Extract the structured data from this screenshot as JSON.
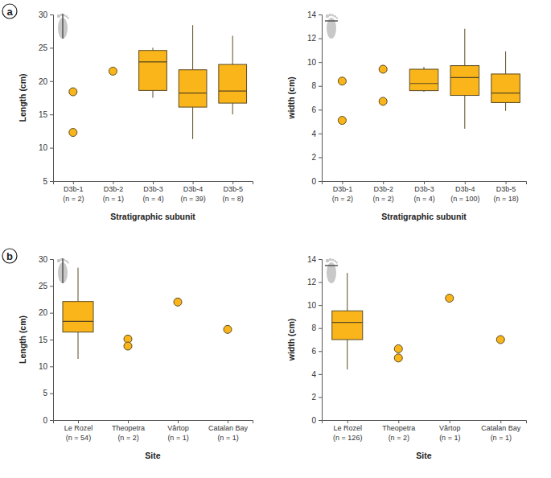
{
  "chart_data": [
    {
      "type": "box",
      "panel_label": "a",
      "x_label": "Stratigraphic subunit",
      "y_label": "Length (cm)",
      "color": "#F9B51A",
      "categories": [
        "D3b-1\n(n = 2)",
        "D3b-2\n(n = 1)",
        "D3b-3\n(n = 4)",
        "D3b-4\n(n = 39)",
        "D3b-5\n(n = 8)"
      ],
      "boxes": [
        null,
        null,
        {
          "min": 17.5,
          "q1": 18.6,
          "median": 22.9,
          "q3": 24.6,
          "max": 25.0
        },
        {
          "min": 11.3,
          "q1": 16.1,
          "median": 18.2,
          "q3": 21.7,
          "max": 28.4
        },
        {
          "min": 15.0,
          "q1": 16.7,
          "median": 18.5,
          "q3": 22.5,
          "max": 26.8
        }
      ],
      "points": [
        [
          18.4,
          12.3
        ],
        [
          21.5
        ],
        [],
        [],
        []
      ],
      "ylim": [
        5,
        30
      ],
      "yticks": [
        5,
        10,
        15,
        20,
        25,
        30
      ]
    },
    {
      "type": "box",
      "x_label": "Stratigraphic subunit",
      "y_label": "width (cm)",
      "color": "#F9B51A",
      "categories": [
        "D3b-1\n(n = 2)",
        "D3b-2\n(n = 2)",
        "D3b-3\n(n = 4)",
        "D3b-4\n(n = 100)",
        "D3b-5\n(n = 18)"
      ],
      "boxes": [
        null,
        null,
        {
          "min": 7.5,
          "q1": 7.6,
          "median": 8.2,
          "q3": 9.4,
          "max": 9.6
        },
        {
          "min": 4.4,
          "q1": 7.2,
          "median": 8.7,
          "q3": 9.7,
          "max": 12.8
        },
        {
          "min": 5.9,
          "q1": 6.6,
          "median": 7.4,
          "q3": 9.0,
          "max": 10.9
        }
      ],
      "points": [
        [
          8.4,
          5.1
        ],
        [
          9.4,
          6.7
        ],
        [],
        [],
        []
      ],
      "ylim": [
        0,
        14
      ],
      "yticks": [
        0,
        2,
        4,
        6,
        8,
        10,
        12,
        14
      ]
    },
    {
      "type": "box",
      "panel_label": "b",
      "x_label": "Site",
      "y_label": "Length (cm)",
      "color": "#F9B51A",
      "categories": [
        "Le Rozel\n(n = 54)",
        "Theopetra\n(n = 2)",
        "Vârtop\n(n = 1)",
        "Catalan Bay\n(n = 1)"
      ],
      "boxes": [
        {
          "min": 11.4,
          "q1": 16.4,
          "median": 18.4,
          "q3": 22.1,
          "max": 28.4
        },
        null,
        null,
        null
      ],
      "points": [
        [],
        [
          15.1,
          13.8
        ],
        [
          22.0
        ],
        [
          16.9
        ]
      ],
      "ylim": [
        0,
        30
      ],
      "yticks": [
        0,
        5,
        10,
        15,
        20,
        25,
        30
      ]
    },
    {
      "type": "box",
      "x_label": "Site",
      "y_label": "width (cm)",
      "color": "#F9B51A",
      "categories": [
        "Le Rozel\n(n = 126)",
        "Theopetra\n(n = 2)",
        "Vârtop\n(n = 1)",
        "Catalan Bay\n(n = 1)"
      ],
      "boxes": [
        {
          "min": 4.4,
          "q1": 7.0,
          "median": 8.5,
          "q3": 9.5,
          "max": 12.8
        },
        null,
        null,
        null
      ],
      "points": [
        [],
        [
          6.2,
          5.4
        ],
        [
          10.6
        ],
        [
          7.0
        ]
      ],
      "ylim": [
        0,
        14
      ],
      "yticks": [
        0,
        2,
        4,
        6,
        8,
        10,
        12,
        14
      ]
    }
  ]
}
